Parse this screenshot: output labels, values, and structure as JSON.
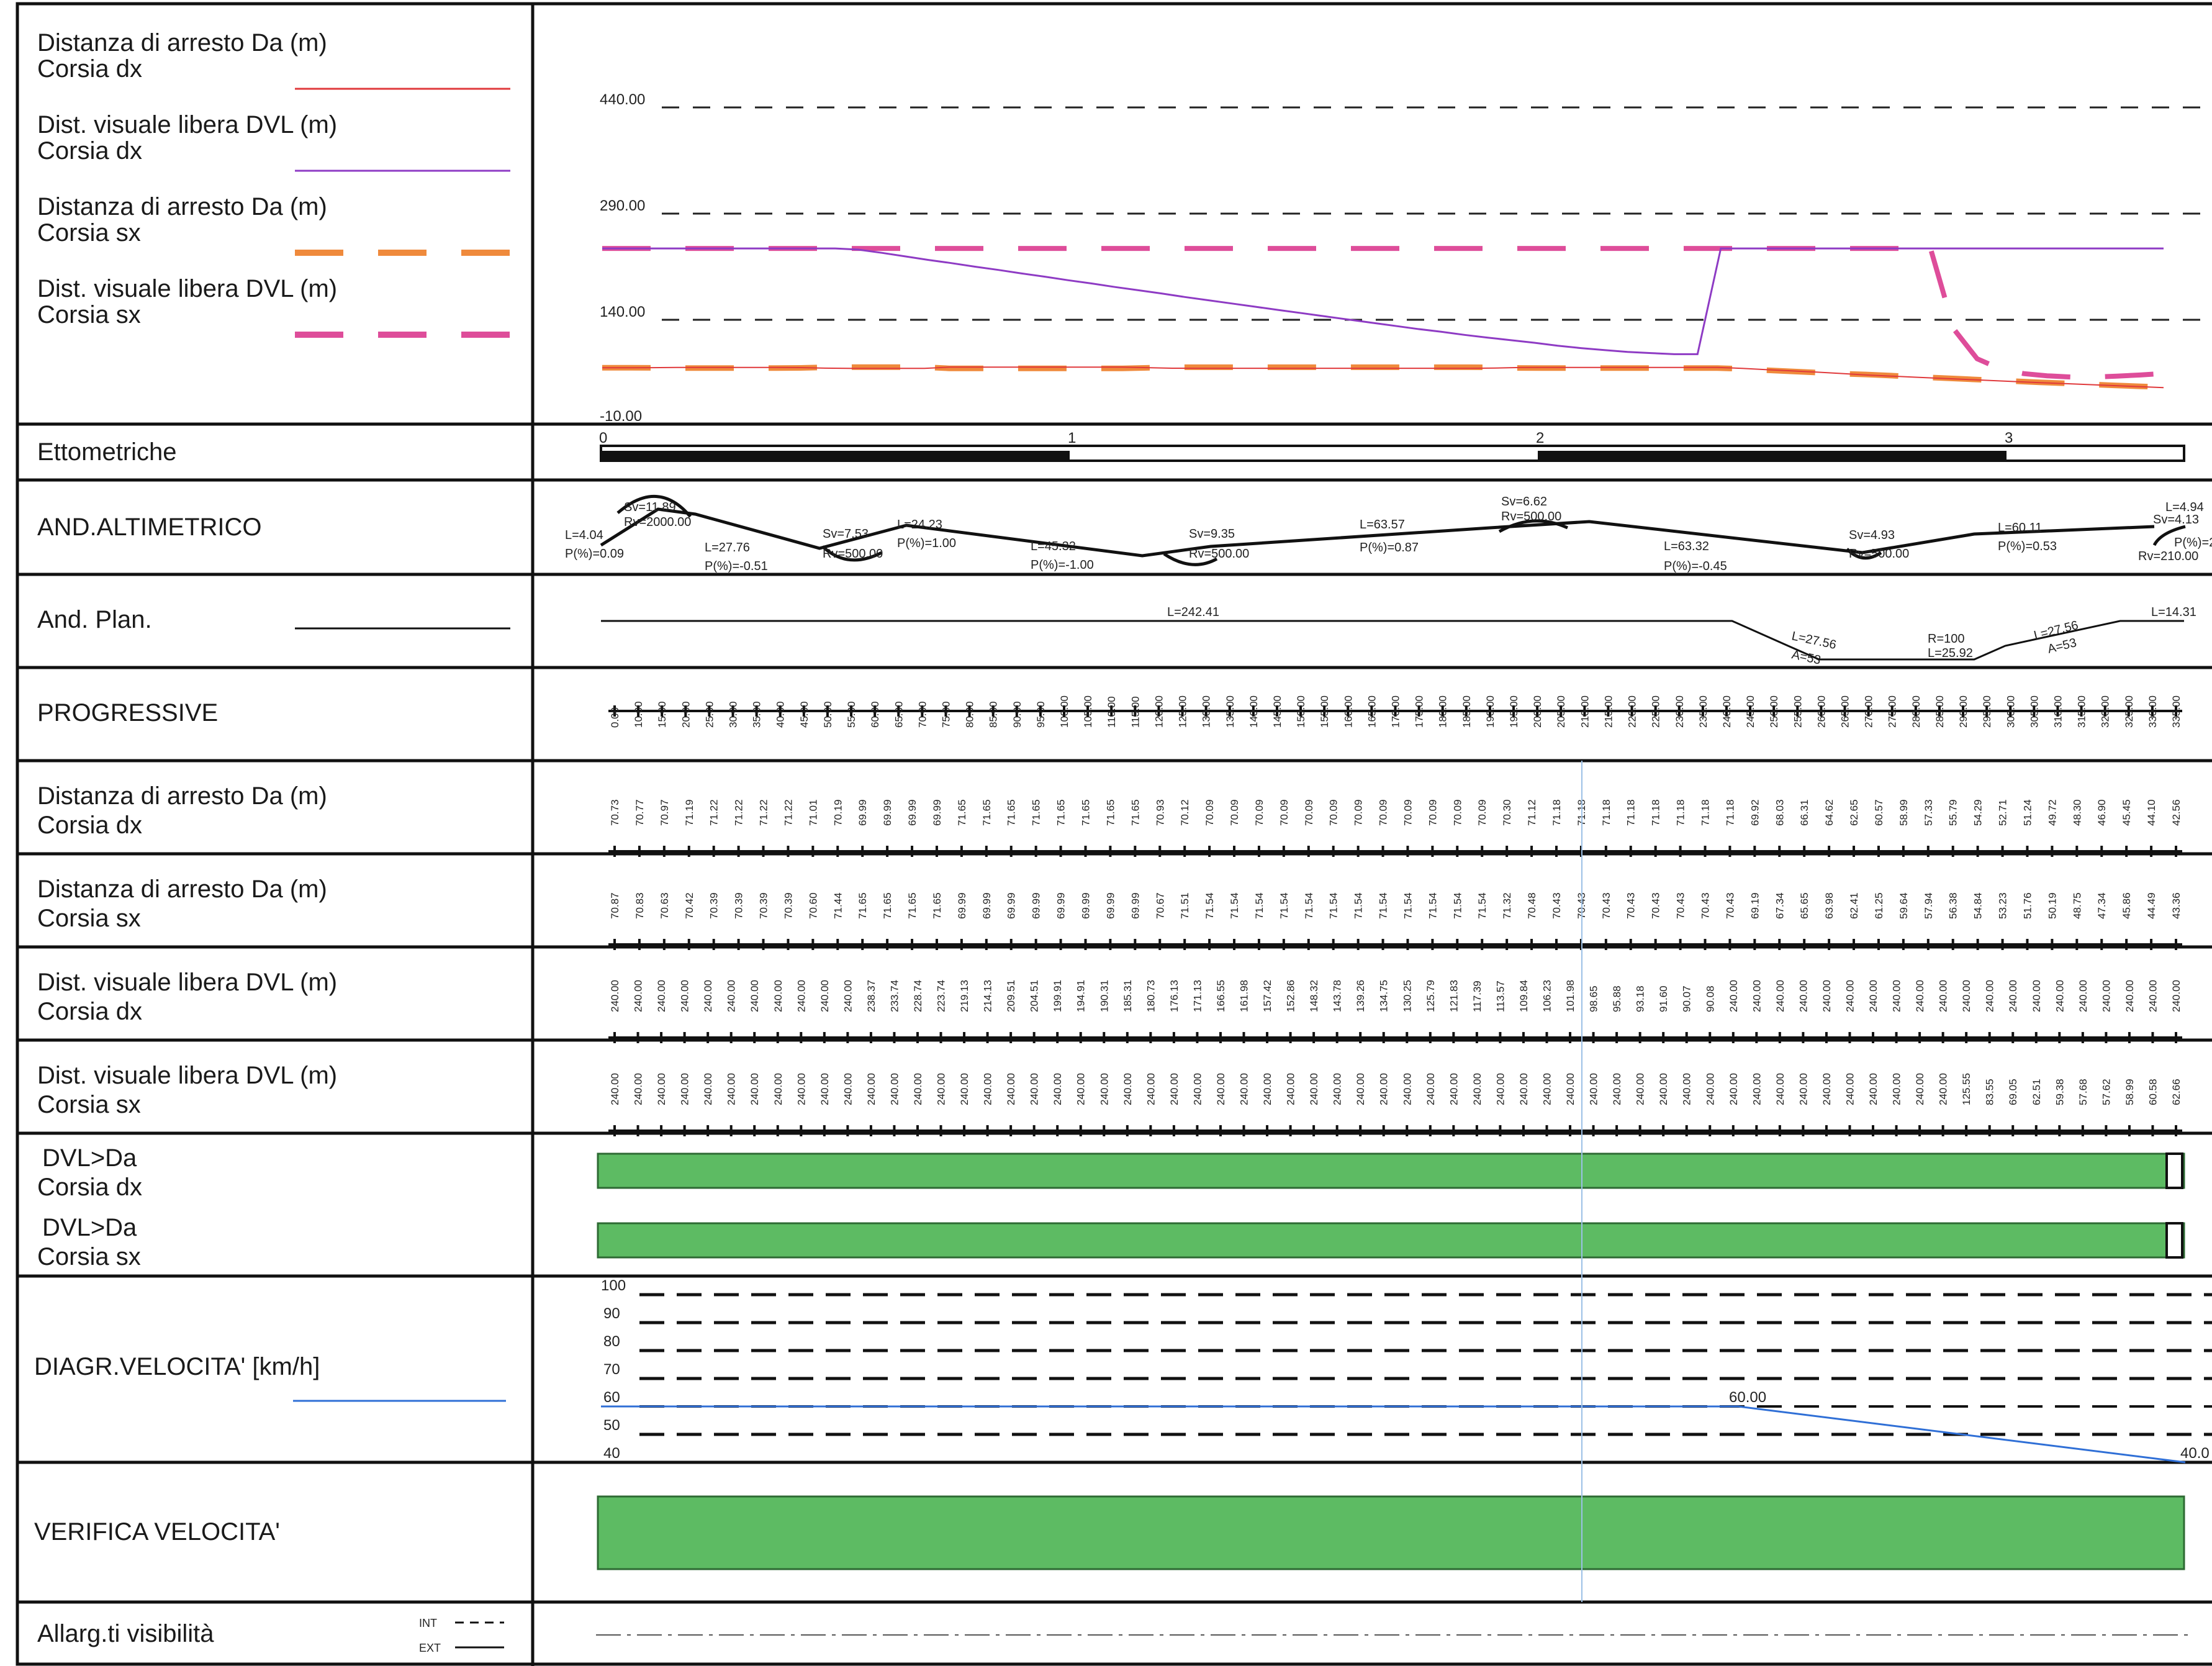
{
  "legend": {
    "items": [
      {
        "line1": "Distanza di arresto Da (m)",
        "line2": "Corsia dx",
        "color": "#e0393b",
        "style": "solid"
      },
      {
        "line1": "Dist. visuale libera DVL (m)",
        "line2": "Corsia dx",
        "color": "#8e3bc4",
        "style": "solid"
      },
      {
        "line1": "Distanza di arresto Da (m)",
        "line2": "Corsia sx",
        "color": "#ef8a3c",
        "style": "dashed"
      },
      {
        "line1": "Dist. visuale libera DVL (m)",
        "line2": "Corsia sx",
        "color": "#de4d9a",
        "style": "dashed"
      }
    ]
  },
  "graph": {
    "ticks": [
      "440.00",
      "290.00",
      "140.00",
      "-10.00"
    ],
    "tick_values": [
      440,
      290,
      140,
      -10
    ]
  },
  "rows": {
    "ettometriche": "Ettometriche",
    "and_altimetrico": "AND.ALTIMETRICO",
    "and_plan": "And. Plan.",
    "progressive": "PROGRESSIVE",
    "da_dx": {
      "line1": "Distanza di arresto Da (m)",
      "line2": "Corsia dx"
    },
    "da_sx": {
      "line1": "Distanza di arresto Da (m)",
      "line2": "Corsia sx"
    },
    "dvl_dx": {
      "line1": "Dist. visuale libera DVL (m)",
      "line2": "Corsia dx"
    },
    "dvl_sx": {
      "line1": "Dist. visuale libera DVL (m)",
      "line2": "Corsia sx"
    },
    "check_dx": {
      "line1": "DVL>Da",
      "line2": "Corsia dx"
    },
    "check_sx": {
      "line1": "DVL>Da",
      "line2": "Corsia sx"
    },
    "speed": "DIAGR.VELOCITA' [km/h]",
    "verifica": "VERIFICA VELOCITA'",
    "allargamenti": "Allarg.ti visibilità",
    "int_label": "INT",
    "ext_label": "EXT"
  },
  "hectometric": [
    "0",
    "1",
    "2",
    "3"
  ],
  "altimetric_labels": {
    "s1": [
      "L=4.04",
      "P(%)=0.09"
    ],
    "v1": [
      "Sv=11.89",
      "Rv=2000.00"
    ],
    "s2": [
      "L=27.76",
      "P(%)=-0.51"
    ],
    "v2": [
      "Sv=7.53",
      "Rv=500.00"
    ],
    "s3": [
      "L=24.23",
      "P(%)=1.00"
    ],
    "s4": [
      "L=45.32",
      "P(%)=-1.00"
    ],
    "v3": [
      "Sv=9.35",
      "Rv=500.00"
    ],
    "s5": [
      "L=63.57",
      "P(%)=0.87"
    ],
    "v4": [
      "Sv=6.62",
      "Rv=500.00"
    ],
    "s6": [
      "L=63.32",
      "P(%)=-0.45"
    ],
    "v5": [
      "Sv=4.93",
      "Rv=500.00"
    ],
    "s7": [
      "L=60.11",
      "P(%)=0.53"
    ],
    "v6": [
      "L=4.94",
      "Sv=4.13",
      "P(%)=2",
      "Rv=210.00"
    ]
  },
  "planimetric_labels": {
    "straight": "L=242.41",
    "clothoid1": [
      "L=27.56",
      "A=53"
    ],
    "curve": [
      "R=100",
      "L=25.92"
    ],
    "clothoid2": [
      "L=27.56",
      "A=53"
    ],
    "straight2": "L=14.31"
  },
  "progressive": [
    "0.00",
    "10.00",
    "15.00",
    "20.00",
    "25.00",
    "30.00",
    "35.00",
    "40.00",
    "45.00",
    "50.00",
    "55.00",
    "60.00",
    "65.00",
    "70.00",
    "75.00",
    "80.00",
    "85.00",
    "90.00",
    "95.00",
    "100.00",
    "105.00",
    "110.00",
    "115.00",
    "120.00",
    "125.00",
    "130.00",
    "135.00",
    "140.00",
    "145.00",
    "150.00",
    "155.00",
    "160.00",
    "165.00",
    "170.00",
    "175.00",
    "180.00",
    "185.00",
    "190.00",
    "195.00",
    "200.00",
    "205.00",
    "210.00",
    "215.00",
    "220.00",
    "225.00",
    "230.00",
    "235.00",
    "240.00",
    "245.00",
    "250.00",
    "255.00",
    "260.00",
    "265.00",
    "270.00",
    "275.00",
    "280.00",
    "285.00",
    "290.00",
    "295.00",
    "300.00",
    "305.00",
    "310.00",
    "315.00",
    "320.00",
    "325.00",
    "330.00",
    "335.00"
  ],
  "da_dx": [
    "70.73",
    "70.77",
    "70.97",
    "71.19",
    "71.22",
    "71.22",
    "71.22",
    "71.22",
    "71.01",
    "70.19",
    "69.99",
    "69.99",
    "69.99",
    "69.99",
    "71.65",
    "71.65",
    "71.65",
    "71.65",
    "71.65",
    "71.65",
    "71.65",
    "71.65",
    "70.93",
    "70.12",
    "70.09",
    "70.09",
    "70.09",
    "70.09",
    "70.09",
    "70.09",
    "70.09",
    "70.09",
    "70.09",
    "70.09",
    "70.09",
    "70.09",
    "70.30",
    "71.12",
    "71.18",
    "71.18",
    "71.18",
    "71.18",
    "71.18",
    "71.18",
    "71.18",
    "71.18",
    "69.92",
    "68.03",
    "66.31",
    "64.62",
    "62.65",
    "60.57",
    "58.99",
    "57.33",
    "55.79",
    "54.29",
    "52.71",
    "51.24",
    "49.72",
    "48.30",
    "46.90",
    "45.45",
    "44.10",
    "42.56"
  ],
  "da_sx": [
    "70.87",
    "70.83",
    "70.63",
    "70.42",
    "70.39",
    "70.39",
    "70.39",
    "70.39",
    "70.60",
    "71.44",
    "71.65",
    "71.65",
    "71.65",
    "71.65",
    "69.99",
    "69.99",
    "69.99",
    "69.99",
    "69.99",
    "69.99",
    "69.99",
    "69.99",
    "70.67",
    "71.51",
    "71.54",
    "71.54",
    "71.54",
    "71.54",
    "71.54",
    "71.54",
    "71.54",
    "71.54",
    "71.54",
    "71.54",
    "71.54",
    "71.54",
    "71.32",
    "70.48",
    "70.43",
    "70.43",
    "70.43",
    "70.43",
    "70.43",
    "70.43",
    "70.43",
    "70.43",
    "69.19",
    "67.34",
    "65.65",
    "63.98",
    "62.41",
    "61.25",
    "59.64",
    "57.94",
    "56.38",
    "54.84",
    "53.23",
    "51.76",
    "50.19",
    "48.75",
    "47.34",
    "45.86",
    "44.49",
    "43.36"
  ],
  "dvl_dx": [
    "240.00",
    "240.00",
    "240.00",
    "240.00",
    "240.00",
    "240.00",
    "240.00",
    "240.00",
    "240.00",
    "240.00",
    "240.00",
    "238.37",
    "233.74",
    "228.74",
    "223.74",
    "219.13",
    "214.13",
    "209.51",
    "204.51",
    "199.91",
    "194.91",
    "190.31",
    "185.31",
    "180.73",
    "176.13",
    "171.13",
    "166.55",
    "161.98",
    "157.42",
    "152.86",
    "148.32",
    "143.78",
    "139.26",
    "134.75",
    "130.25",
    "125.79",
    "121.83",
    "117.39",
    "113.57",
    "109.84",
    "106.23",
    "101.98",
    "98.65",
    "95.88",
    "93.18",
    "91.60",
    "90.07",
    "90.08",
    "240.00",
    "240.00",
    "240.00",
    "240.00",
    "240.00",
    "240.00",
    "240.00",
    "240.00",
    "240.00",
    "240.00",
    "240.00",
    "240.00",
    "240.00",
    "240.00",
    "240.00",
    "240.00",
    "240.00",
    "240.00",
    "240.00",
    "240.00"
  ],
  "dvl_sx": [
    "240.00",
    "240.00",
    "240.00",
    "240.00",
    "240.00",
    "240.00",
    "240.00",
    "240.00",
    "240.00",
    "240.00",
    "240.00",
    "240.00",
    "240.00",
    "240.00",
    "240.00",
    "240.00",
    "240.00",
    "240.00",
    "240.00",
    "240.00",
    "240.00",
    "240.00",
    "240.00",
    "240.00",
    "240.00",
    "240.00",
    "240.00",
    "240.00",
    "240.00",
    "240.00",
    "240.00",
    "240.00",
    "240.00",
    "240.00",
    "240.00",
    "240.00",
    "240.00",
    "240.00",
    "240.00",
    "240.00",
    "240.00",
    "240.00",
    "240.00",
    "240.00",
    "240.00",
    "240.00",
    "240.00",
    "240.00",
    "240.00",
    "240.00",
    "240.00",
    "240.00",
    "240.00",
    "240.00",
    "240.00",
    "240.00",
    "240.00",
    "240.00",
    "125.55",
    "83.55",
    "69.05",
    "62.51",
    "59.38",
    "57.68",
    "57.62",
    "58.99",
    "60.58",
    "62.66"
  ],
  "speed": {
    "ticks": [
      "100",
      "90",
      "80",
      "70",
      "60",
      "50",
      "40"
    ],
    "label_start": "60.00",
    "label_end": "40.0",
    "color": "#2f6fd6"
  },
  "colors": {
    "ok_fill": "#5dbb63",
    "ok_stroke": "#2d6a33"
  }
}
